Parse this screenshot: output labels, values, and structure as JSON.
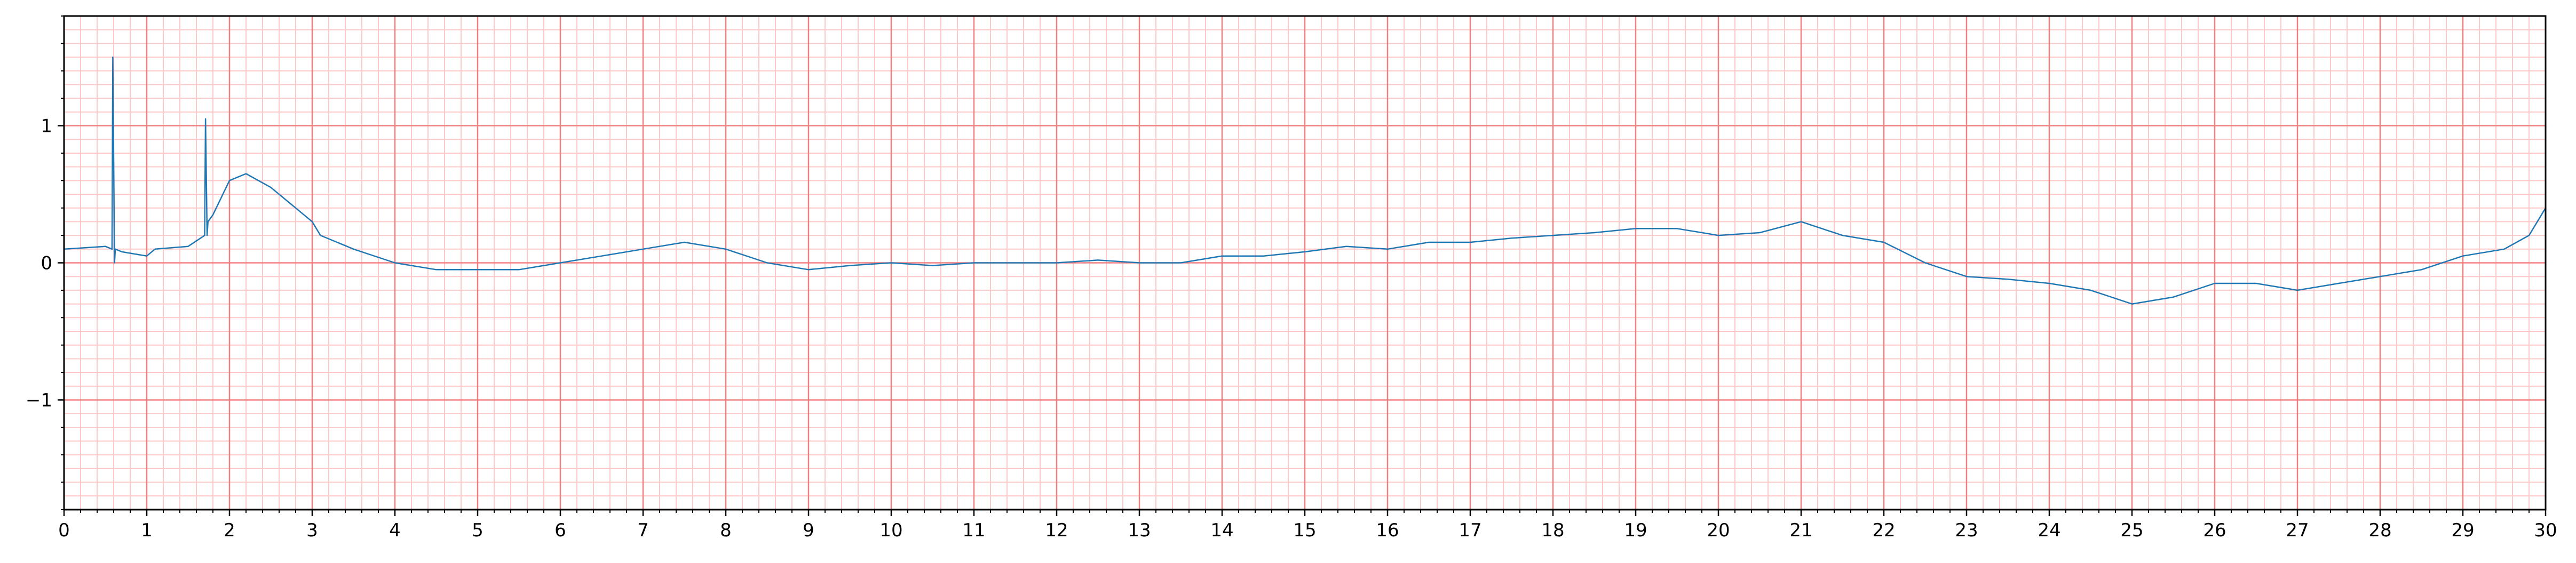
{
  "chart_data": {
    "type": "line",
    "title": "",
    "xlabel": "",
    "ylabel": "",
    "xlim": [
      0,
      30
    ],
    "ylim": [
      -1.8,
      1.8
    ],
    "grid": true,
    "x_tick_labels": [
      "0",
      "1",
      "2",
      "3",
      "4",
      "5",
      "6",
      "7",
      "8",
      "9",
      "10",
      "11",
      "12",
      "13",
      "14",
      "15",
      "16",
      "17",
      "18",
      "19",
      "20",
      "21",
      "22",
      "23",
      "24",
      "25",
      "26",
      "27",
      "28",
      "29",
      "30"
    ],
    "y_tick_labels": [
      "1",
      "0",
      "−1"
    ],
    "colors": {
      "line": "#1f77b4",
      "major_grid": "#f08080",
      "minor_grid": "#ffc8c8",
      "axis": "#000000"
    },
    "series": [
      {
        "x": [
          0.0,
          0.5,
          0.58,
          0.59,
          0.61,
          0.62,
          0.7,
          1.0,
          1.1,
          1.5,
          1.7,
          1.71,
          1.73,
          1.74,
          1.8,
          2.0,
          2.2,
          2.5,
          2.8,
          3.0,
          3.1,
          3.5,
          4.0,
          4.5,
          5.0,
          5.5,
          6.0,
          6.5,
          7.0,
          7.5,
          8.0,
          8.5,
          9.0,
          9.5,
          10.0,
          10.5,
          11.0,
          11.5,
          12.0,
          12.5,
          13.0,
          13.5,
          14.0,
          14.5,
          15.0,
          15.5,
          16.0,
          16.5,
          17.0,
          17.5,
          18.0,
          18.5,
          19.0,
          19.5,
          20.0,
          20.5,
          21.0,
          21.5,
          22.0,
          22.5,
          23.0,
          23.5,
          24.0,
          24.5,
          25.0,
          25.5,
          26.0,
          26.5,
          27.0,
          27.5,
          28.0,
          28.5,
          29.0,
          29.5,
          29.8,
          30.0
        ],
        "y": [
          0.1,
          0.12,
          0.1,
          1.5,
          0.0,
          0.1,
          0.08,
          0.05,
          0.1,
          0.12,
          0.2,
          1.05,
          0.2,
          0.3,
          0.35,
          0.6,
          0.65,
          0.55,
          0.4,
          0.3,
          0.2,
          0.1,
          0.0,
          -0.05,
          -0.05,
          -0.05,
          0.0,
          0.05,
          0.1,
          0.15,
          0.1,
          0.0,
          -0.05,
          -0.02,
          0.0,
          -0.02,
          0.0,
          0.0,
          0.0,
          0.02,
          0.0,
          0.0,
          0.05,
          0.05,
          0.08,
          0.12,
          0.1,
          0.15,
          0.15,
          0.18,
          0.2,
          0.22,
          0.25,
          0.25,
          0.2,
          0.22,
          0.3,
          0.2,
          0.15,
          0.0,
          -0.1,
          -0.12,
          -0.15,
          -0.2,
          -0.3,
          -0.25,
          -0.15,
          -0.15,
          -0.2,
          -0.15,
          -0.1,
          -0.05,
          0.05,
          0.1,
          0.2,
          0.4
        ]
      }
    ]
  }
}
